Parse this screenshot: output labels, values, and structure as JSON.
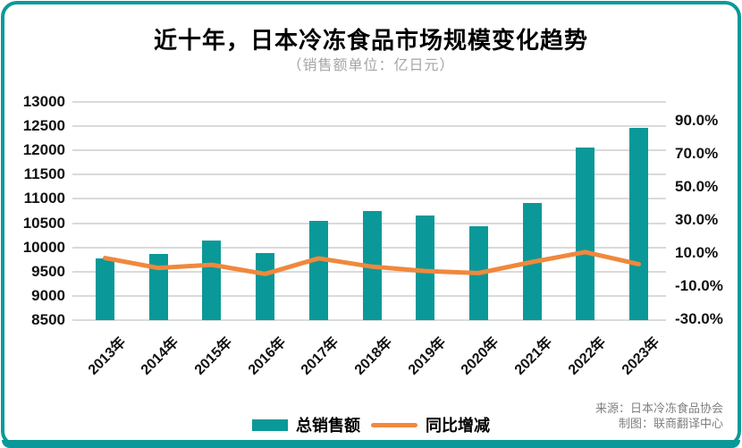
{
  "card": {
    "title": "近十年，日本冷冻食品市场规模变化趋势",
    "subtitle": "（销售额单位：亿日元）",
    "source_line1": "来源：日本冷冻食品协会",
    "source_line2": "制图：联商翻译中心"
  },
  "colors": {
    "teal": "#0A9998",
    "orange": "#F0883D",
    "grid": "#DADADA",
    "axis_text": "#111111",
    "subtitle_gray": "#A6A6A6",
    "source_gray": "#7F7F7F"
  },
  "legend": {
    "items": [
      {
        "label": "总销售额",
        "swatch": "bar"
      },
      {
        "label": "同比增减",
        "swatch": "line"
      }
    ]
  },
  "chart_data": {
    "type": "combo-bar-line",
    "categories": [
      "2013年",
      "2014年",
      "2015年",
      "2016年",
      "2017年",
      "2018年",
      "2019年",
      "2020年",
      "2021年",
      "2022年",
      "2023年"
    ],
    "series": [
      {
        "name": "总销售额",
        "type": "bar",
        "y_axis": "left",
        "unit": "亿日元",
        "values": [
          9772,
          9867,
          10149,
          9887,
          10556,
          10747,
          10653,
          10434,
          10909,
          12065,
          12464
        ]
      },
      {
        "name": "同比增减",
        "type": "line",
        "y_axis": "right",
        "unit": "%",
        "values": [
          7.0,
          1.0,
          2.9,
          -2.6,
          6.8,
          1.8,
          -0.9,
          -2.1,
          4.6,
          10.6,
          3.3
        ]
      }
    ],
    "left_axis": {
      "min": 8500,
      "max": 13000,
      "step": 500,
      "ticks": [
        13000,
        12500,
        12000,
        11500,
        11000,
        10500,
        10000,
        9500,
        9000,
        8500
      ]
    },
    "right_axis": {
      "ticks": [
        90,
        70,
        50,
        30,
        10,
        -10,
        -30
      ],
      "format": "0.0%",
      "approx_range": [
        -32.5,
        100
      ]
    },
    "grid": true,
    "legend_position": "bottom",
    "x_label_rotation_deg": -45
  }
}
